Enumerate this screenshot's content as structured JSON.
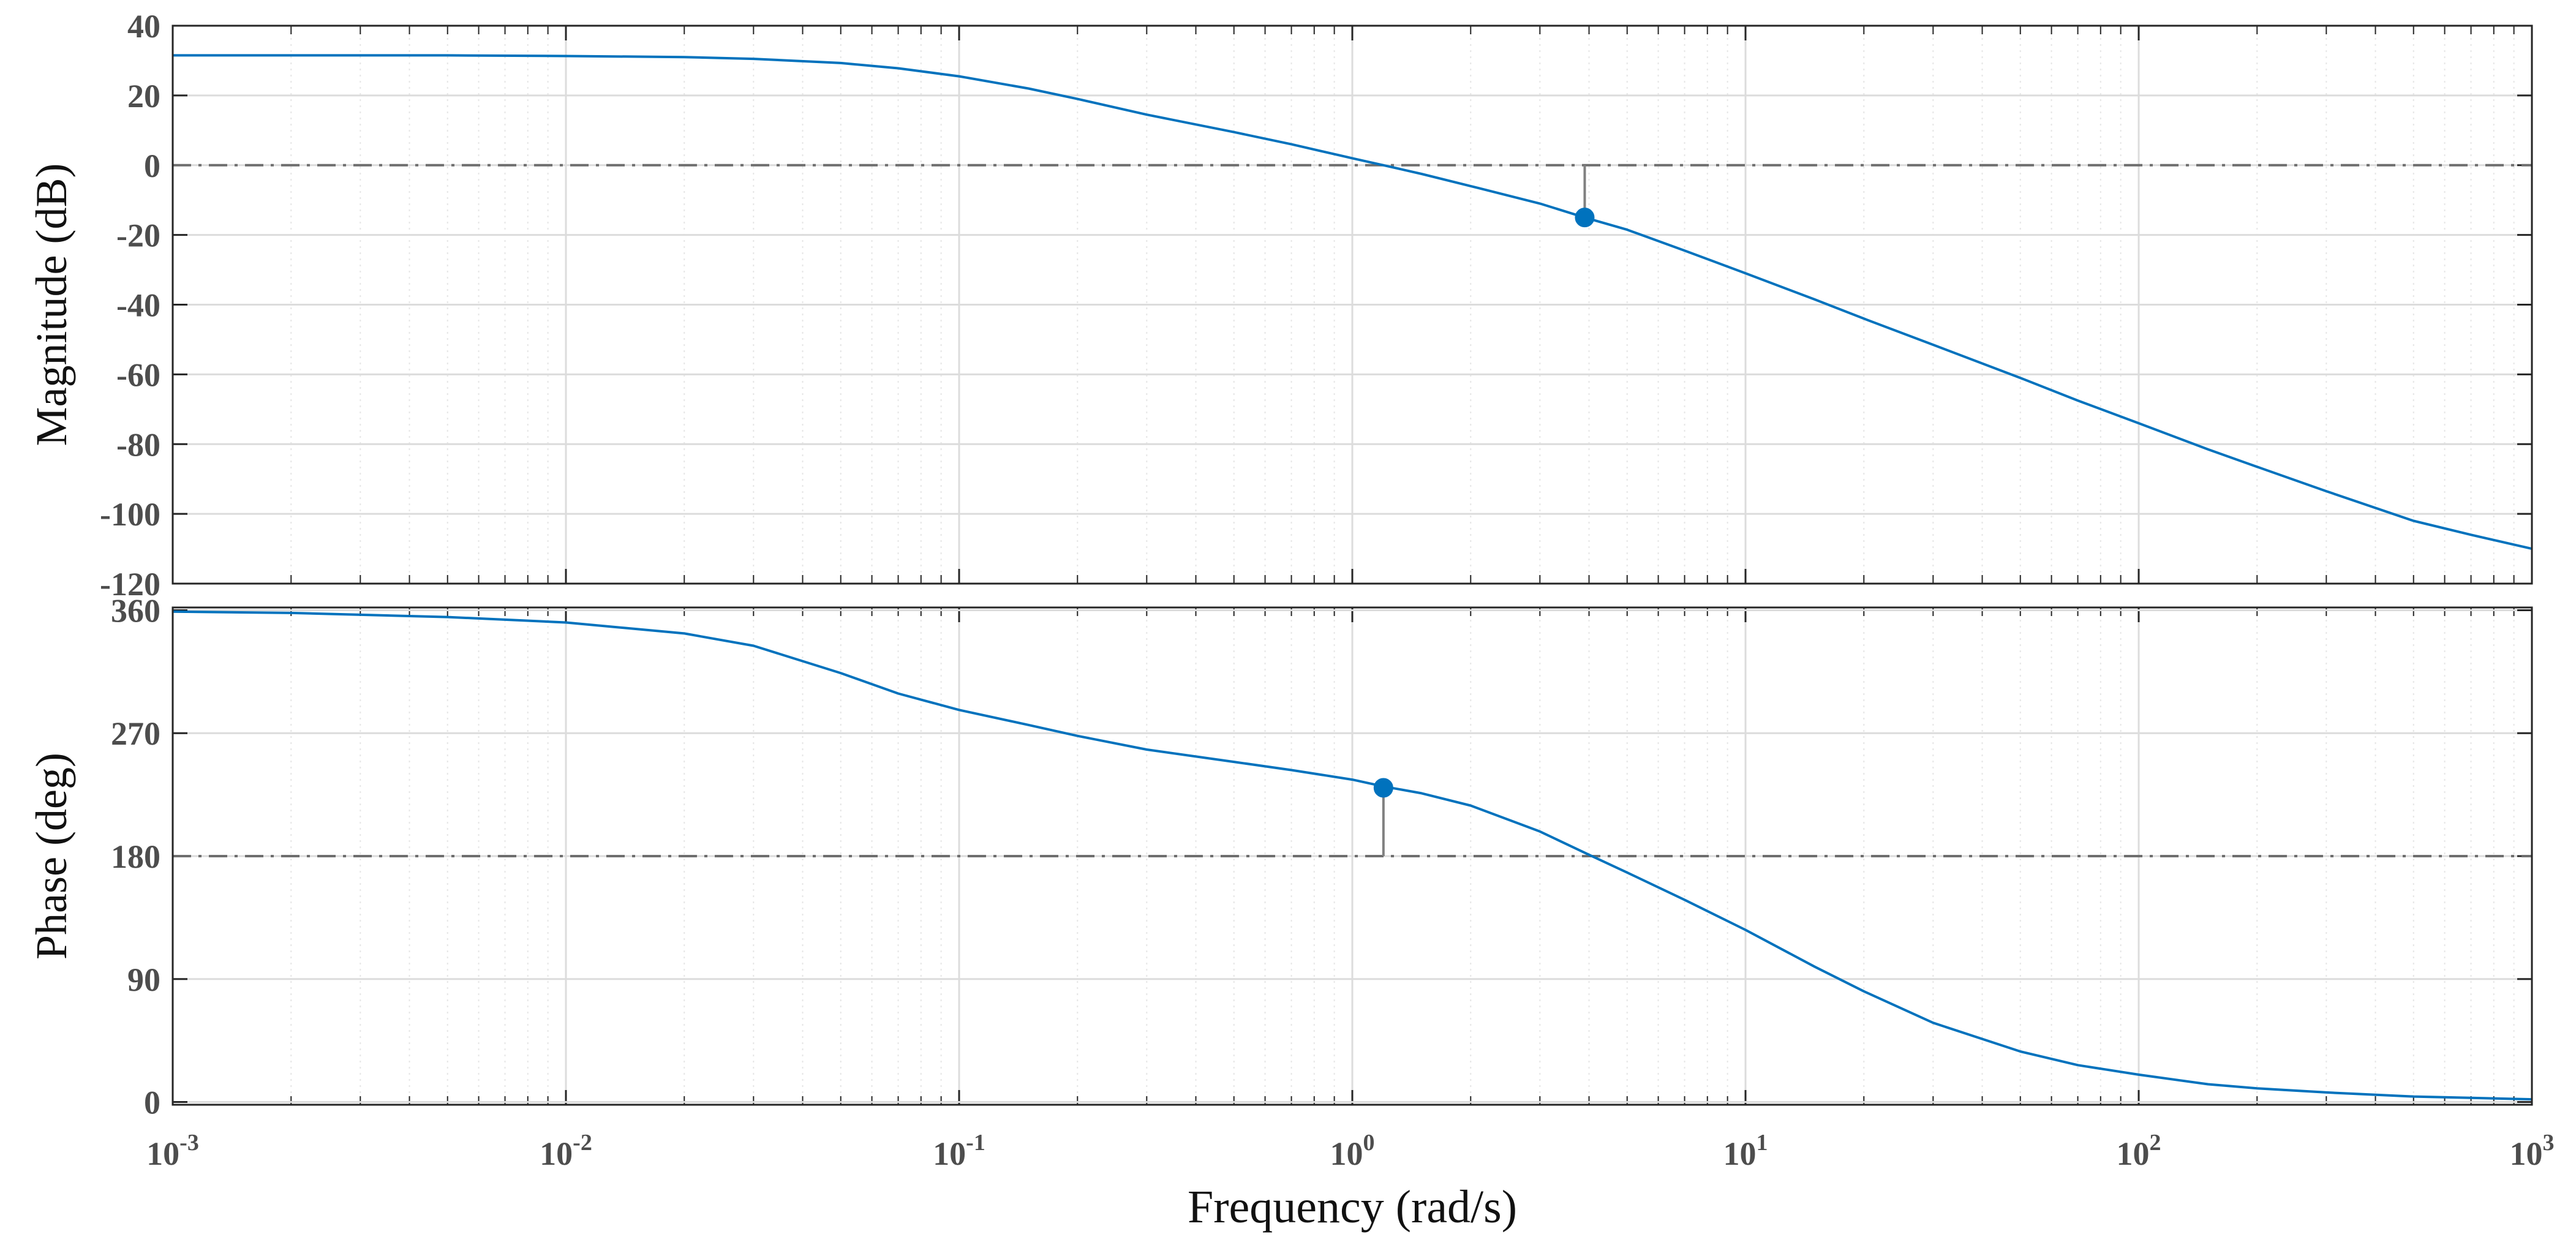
{
  "chart_data": {
    "type": "line",
    "title": "",
    "xlabel": "Frequency (rad/s)",
    "x_scale": "log",
    "x_range": [
      0.001,
      1000
    ],
    "x_ticks": [
      {
        "value": 0.001,
        "base": "10",
        "exp": "-3"
      },
      {
        "value": 0.01,
        "base": "10",
        "exp": "-2"
      },
      {
        "value": 0.1,
        "base": "10",
        "exp": "-1"
      },
      {
        "value": 1,
        "base": "10",
        "exp": "0"
      },
      {
        "value": 10,
        "base": "10",
        "exp": "1"
      },
      {
        "value": 100,
        "base": "10",
        "exp": "2"
      },
      {
        "value": 1000,
        "base": "10",
        "exp": "3"
      }
    ],
    "grid": true,
    "line_color": "#0072BD",
    "grid_color": "#dcdcdc",
    "reference_color": "#6e6e6e",
    "panels": [
      {
        "name": "magnitude",
        "ylabel": "Magnitude (dB)",
        "ylim": [
          -120,
          40
        ],
        "yticks": [
          {
            "value": 40,
            "label": "40"
          },
          {
            "value": 20,
            "label": "20"
          },
          {
            "value": 0,
            "label": "0"
          },
          {
            "value": -20,
            "label": "-20"
          },
          {
            "value": -40,
            "label": "-40"
          },
          {
            "value": -60,
            "label": "-60"
          },
          {
            "value": -80,
            "label": "-80"
          },
          {
            "value": -100,
            "label": "-100"
          },
          {
            "value": -120,
            "label": "-120"
          }
        ],
        "reference_line": 0,
        "marker": {
          "x": 3.9,
          "y": -15
        },
        "series": [
          {
            "name": "magnitude",
            "x": [
              0.001,
              0.002,
              0.005,
              0.01,
              0.02,
              0.03,
              0.05,
              0.07,
              0.1,
              0.15,
              0.2,
              0.3,
              0.5,
              0.7,
              1.0,
              1.2,
              1.5,
              2,
              3,
              3.9,
              5,
              7,
              10,
              15,
              20,
              30,
              50,
              70,
              100,
              150,
              200,
              300,
              500,
              700,
              1000
            ],
            "y": [
              31.5,
              31.5,
              31.5,
              31.3,
              31.0,
              30.5,
              29.3,
              27.8,
              25.5,
              22.0,
              19.0,
              14.5,
              9.5,
              6.0,
              2.0,
              0.0,
              -2.5,
              -6.0,
              -11.0,
              -15.0,
              -18.5,
              -24.5,
              -31.0,
              -38.5,
              -44.0,
              -51.5,
              -61.0,
              -67.5,
              -74.0,
              -81.5,
              -86.5,
              -93.5,
              -102.0,
              -106.0,
              -110.0
            ]
          }
        ]
      },
      {
        "name": "phase",
        "ylabel": "Phase (deg)",
        "ylim": [
          -2,
          362
        ],
        "yticks": [
          {
            "value": 360,
            "label": "360"
          },
          {
            "value": 270,
            "label": "270"
          },
          {
            "value": 180,
            "label": "180"
          },
          {
            "value": 90,
            "label": "90"
          },
          {
            "value": 0,
            "label": "0"
          }
        ],
        "reference_line": 180,
        "marker": {
          "x": 1.2,
          "y": 230
        },
        "series": [
          {
            "name": "phase",
            "x": [
              0.001,
              0.002,
              0.005,
              0.01,
              0.02,
              0.03,
              0.05,
              0.07,
              0.1,
              0.15,
              0.2,
              0.3,
              0.5,
              0.7,
              1.0,
              1.2,
              1.5,
              2,
              3,
              4,
              5,
              7,
              10,
              15,
              20,
              30,
              50,
              70,
              100,
              150,
              200,
              300,
              500,
              700,
              1000
            ],
            "y": [
              359,
              358,
              355,
              351,
              343,
              334,
              314,
              299,
              287,
              276,
              268,
              258,
              249,
              243,
              236,
              231,
              226,
              217,
              198,
              181,
              168,
              148,
              126,
              99,
              81,
              58,
              37,
              27,
              20,
              13,
              10,
              7,
              4,
              3,
              2
            ]
          }
        ]
      }
    ]
  }
}
